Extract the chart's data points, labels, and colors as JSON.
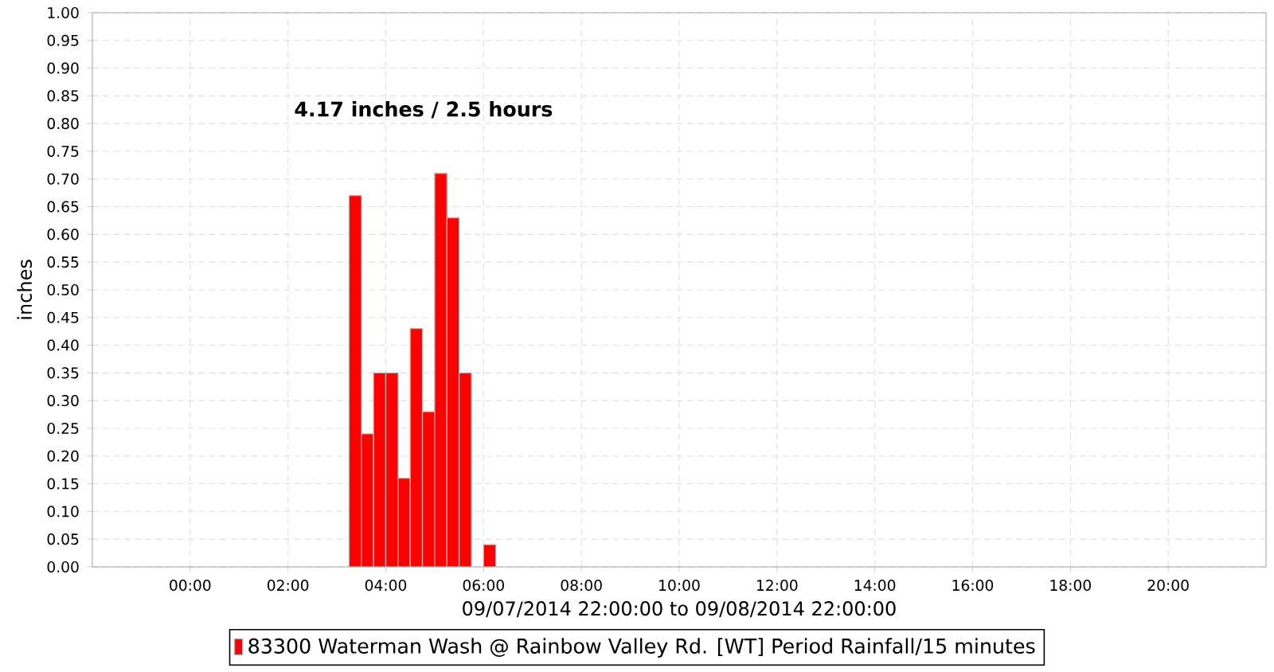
{
  "chart_data": {
    "type": "bar",
    "xlabel": "09/07/2014 22:00:00 to 09/08/2014 22:00:00",
    "ylabel": "inches",
    "annotations": [
      "4.17 inches / 2.5 hours"
    ],
    "series": [
      {
        "name": "83300 Waterman Wash @ Rainbow Valley Rd. [WT] Period Rainfall/15 minutes",
        "color": "#ff0000",
        "x": [
          "2014-09-08T03:15",
          "2014-09-08T03:30",
          "2014-09-08T03:45",
          "2014-09-08T04:00",
          "2014-09-08T04:15",
          "2014-09-08T04:30",
          "2014-09-08T04:45",
          "2014-09-08T05:00",
          "2014-09-08T05:15",
          "2014-09-08T05:30",
          "2014-09-08T06:00"
        ],
        "values": [
          0.67,
          0.24,
          0.35,
          0.35,
          0.16,
          0.43,
          0.28,
          0.71,
          0.63,
          0.35,
          0.04
        ]
      }
    ],
    "xlim": [
      "2014-09-07T22:00",
      "2014-09-08T22:00"
    ],
    "xticks": [
      {
        "value": "2014-09-08T00:00",
        "label": "00:00"
      },
      {
        "value": "2014-09-08T02:00",
        "label": "02:00"
      },
      {
        "value": "2014-09-08T04:00",
        "label": "04:00"
      },
      {
        "value": "2014-09-08T06:00",
        "label": "06:00"
      },
      {
        "value": "2014-09-08T08:00",
        "label": "08:00"
      },
      {
        "value": "2014-09-08T10:00",
        "label": "10:00"
      },
      {
        "value": "2014-09-08T12:00",
        "label": "12:00"
      },
      {
        "value": "2014-09-08T14:00",
        "label": "14:00"
      },
      {
        "value": "2014-09-08T16:00",
        "label": "16:00"
      },
      {
        "value": "2014-09-08T18:00",
        "label": "18:00"
      },
      {
        "value": "2014-09-08T20:00",
        "label": "20:00"
      }
    ],
    "ylim": [
      0,
      1
    ],
    "yticks": [
      {
        "value": 0,
        "label": "0.00"
      },
      {
        "value": 0.05,
        "label": "0.05"
      },
      {
        "value": 0.1,
        "label": "0.10"
      },
      {
        "value": 0.15,
        "label": "0.15"
      },
      {
        "value": 0.2,
        "label": "0.20"
      },
      {
        "value": 0.25,
        "label": "0.25"
      },
      {
        "value": 0.3,
        "label": "0.30"
      },
      {
        "value": 0.35,
        "label": "0.35"
      },
      {
        "value": 0.4,
        "label": "0.40"
      },
      {
        "value": 0.45,
        "label": "0.45"
      },
      {
        "value": 0.5,
        "label": "0.50"
      },
      {
        "value": 0.55,
        "label": "0.55"
      },
      {
        "value": 0.6,
        "label": "0.60"
      },
      {
        "value": 0.65,
        "label": "0.65"
      },
      {
        "value": 0.7,
        "label": "0.70"
      },
      {
        "value": 0.75,
        "label": "0.75"
      },
      {
        "value": 0.8,
        "label": "0.80"
      },
      {
        "value": 0.85,
        "label": "0.85"
      },
      {
        "value": 0.9,
        "label": "0.90"
      },
      {
        "value": 0.95,
        "label": "0.95"
      },
      {
        "value": 1,
        "label": "1.00"
      }
    ],
    "grid": true,
    "legend": "bottom"
  }
}
